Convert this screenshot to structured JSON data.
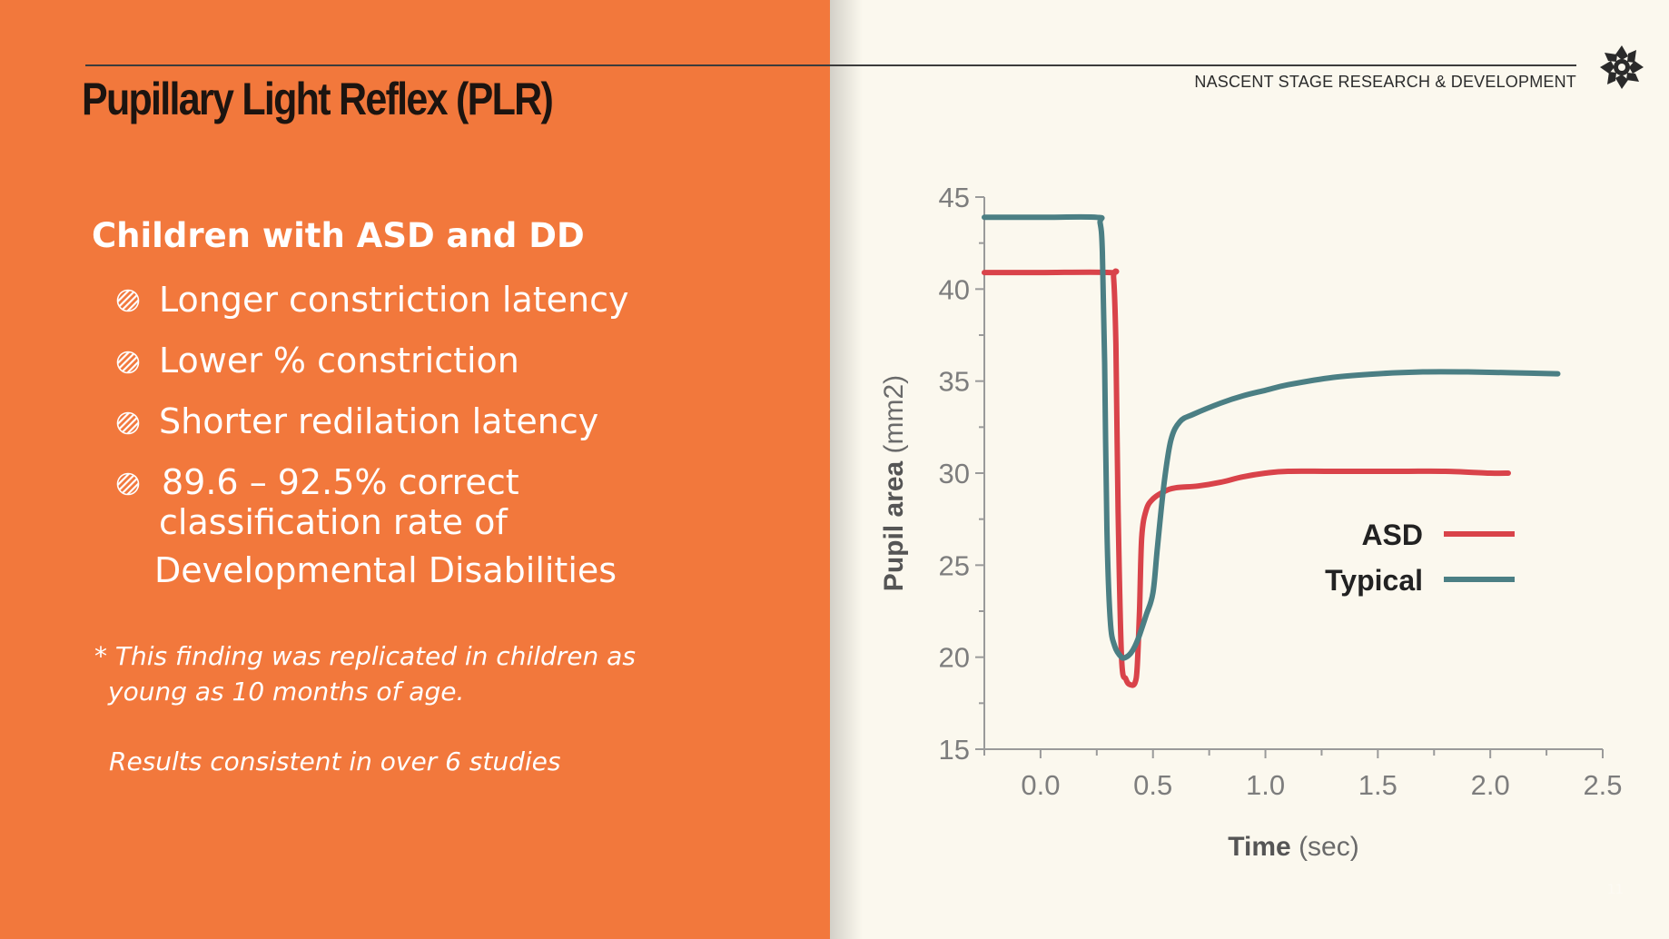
{
  "slide": {
    "title": "Pupillary Light Reflex (PLR)",
    "organization": "NASCENT STAGE RESEARCH & DEVELOPMENT",
    "page_number": "11"
  },
  "content": {
    "subheading": "Children with ASD and DD",
    "bullets": [
      {
        "text": "Longer constriction latency"
      },
      {
        "text": "Lower % constriction"
      },
      {
        "text": "Shorter redilation latency"
      },
      {
        "line1": "89.6 – 92.5% correct",
        "line2": "classification rate of",
        "line3": "Developmental Disabilities"
      }
    ],
    "note1_line1": "* This finding was replicated in children as",
    "note1_line2": "young as 10 months of age.",
    "note2": "Results consistent in over 6 studies"
  },
  "colors": {
    "orange_panel": "#f2783c",
    "background": "#fbf8ee",
    "asd": "#d9434a",
    "typical": "#4b7f84",
    "axis": "#9a9a9a"
  },
  "chart_data": {
    "type": "line",
    "xlabel_bold": "Time",
    "xlabel_unit": "(sec)",
    "ylabel_bold": "Pupil area",
    "ylabel_unit": "(mm2)",
    "xlim": [
      -0.25,
      2.5
    ],
    "ylim": [
      15,
      45
    ],
    "xticks": [
      0.0,
      0.5,
      1.0,
      1.5,
      2.0,
      2.5
    ],
    "xtick_labels": [
      "0.0",
      "0.5",
      "1.0",
      "1.5",
      "2.0",
      "2.5"
    ],
    "yticks": [
      15,
      20,
      25,
      30,
      35,
      40,
      45
    ],
    "ytick_labels": [
      "15",
      "20",
      "25",
      "30",
      "35",
      "40",
      "45"
    ],
    "legend_position": "bottom-right",
    "series": [
      {
        "name": "ASD",
        "color": "#d9434a",
        "x": [
          -0.25,
          0.0,
          0.31,
          0.325,
          0.335,
          0.345,
          0.36,
          0.38,
          0.4,
          0.42,
          0.43,
          0.44,
          0.45,
          0.47,
          0.5,
          0.55,
          0.6,
          0.7,
          0.8,
          0.9,
          1.0,
          1.1,
          1.3,
          1.6,
          1.8,
          2.0,
          2.08
        ],
        "y": [
          40.9,
          40.9,
          40.9,
          40.6,
          37.0,
          28.0,
          20.0,
          18.8,
          18.5,
          18.6,
          19.5,
          22.5,
          26.5,
          28.0,
          28.6,
          29.0,
          29.2,
          29.3,
          29.5,
          29.8,
          30.0,
          30.1,
          30.1,
          30.1,
          30.1,
          30.0,
          30.0
        ]
      },
      {
        "name": "Typical",
        "color": "#4b7f84",
        "x": [
          -0.25,
          0.0,
          0.25,
          0.265,
          0.275,
          0.285,
          0.295,
          0.31,
          0.33,
          0.36,
          0.38,
          0.4,
          0.42,
          0.44,
          0.47,
          0.5,
          0.52,
          0.55,
          0.58,
          0.62,
          0.68,
          0.8,
          0.9,
          1.0,
          1.1,
          1.3,
          1.5,
          1.7,
          1.9,
          2.1,
          2.3
        ],
        "y": [
          43.9,
          43.9,
          43.9,
          43.6,
          42.0,
          36.0,
          27.0,
          22.0,
          20.6,
          20.0,
          20.0,
          20.2,
          20.6,
          21.2,
          22.3,
          23.5,
          26.0,
          29.5,
          31.8,
          32.8,
          33.2,
          33.8,
          34.2,
          34.5,
          34.8,
          35.2,
          35.4,
          35.5,
          35.5,
          35.45,
          35.4
        ]
      }
    ]
  }
}
